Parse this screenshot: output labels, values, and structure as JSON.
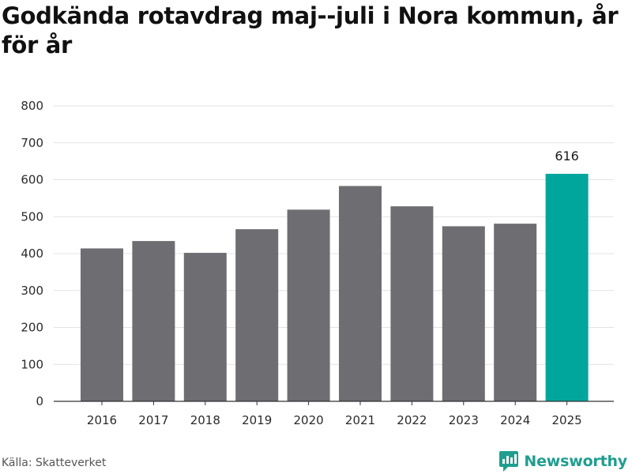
{
  "header": {
    "title": "Godkända rotavdrag maj--juli i Nora kommun, år för år"
  },
  "footer": {
    "source": "Källa: Skatteverket",
    "brand": "Newsworthy"
  },
  "colors": {
    "bar": "#6e6d72",
    "highlight": "#00a69c",
    "grid": "#e3e3e3",
    "axis": "#333333",
    "brand": "#1f9e8f"
  },
  "icons": {
    "brand_logo": "bar-chart-speech-bubble-icon"
  },
  "chart_data": {
    "type": "bar",
    "categories": [
      "2016",
      "2017",
      "2018",
      "2019",
      "2020",
      "2021",
      "2022",
      "2023",
      "2024",
      "2025"
    ],
    "values": [
      414,
      434,
      402,
      466,
      519,
      583,
      528,
      474,
      481,
      616
    ],
    "highlight_index": 9,
    "data_labels": [
      {
        "index": 9,
        "text": "616"
      }
    ],
    "ylim": [
      0,
      800
    ],
    "yticks": [
      0,
      100,
      200,
      300,
      400,
      500,
      600,
      700,
      800
    ],
    "xlabel": "",
    "ylabel": "",
    "grid": true,
    "legend": "none"
  }
}
